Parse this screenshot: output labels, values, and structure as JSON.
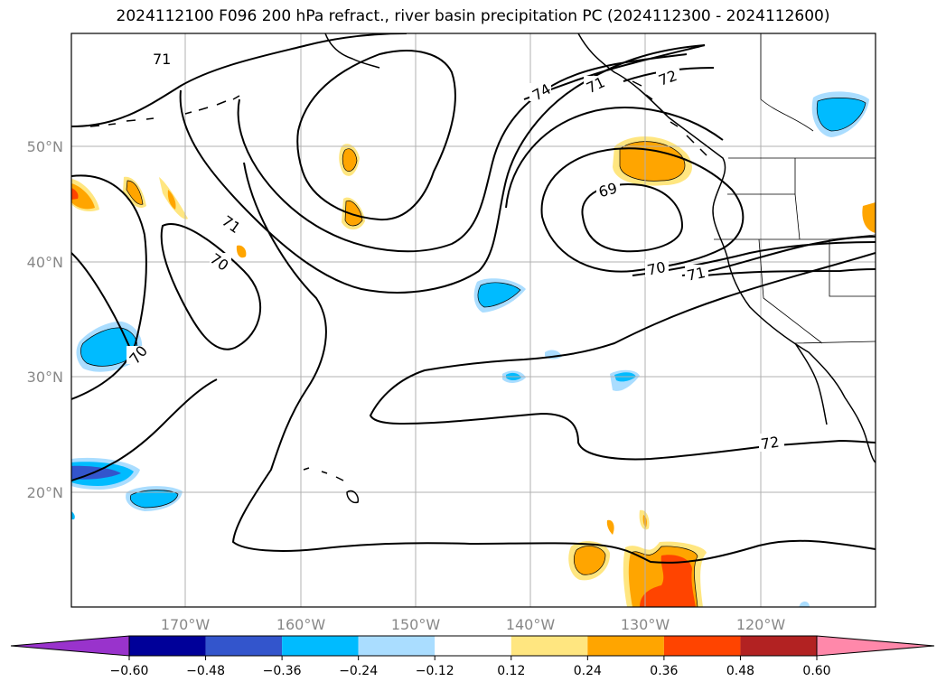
{
  "title": "2024112100 F096 200 hPa refract., river basin precipitation PC (2024112300 - 2024112600)",
  "map": {
    "region": "North-East Pacific",
    "lon_range": [
      -180,
      -110
    ],
    "lat_range": [
      10,
      60
    ],
    "lat_labels": [
      "50°N",
      "40°N",
      "30°N",
      "20°N"
    ],
    "lon_labels": [
      "170°W",
      "160°W",
      "150°W",
      "140°W",
      "130°W",
      "120°W"
    ],
    "contour_labels": [
      "71",
      "71",
      "70",
      "70",
      "74",
      "71",
      "72",
      "69",
      "70",
      "71",
      "72"
    ],
    "colorbar": {
      "ticks": [
        "−0.60",
        "−0.48",
        "−0.36",
        "−0.24",
        "−0.12",
        "0.12",
        "0.24",
        "0.36",
        "0.48",
        "0.60"
      ],
      "colors": [
        "#9933cc",
        "#000099",
        "#3355cc",
        "#00bbff",
        "#aaddff",
        "#ffffff",
        "#ffe680",
        "#ffa500",
        "#ff4400",
        "#b22222",
        "#ff88aa"
      ]
    }
  }
}
